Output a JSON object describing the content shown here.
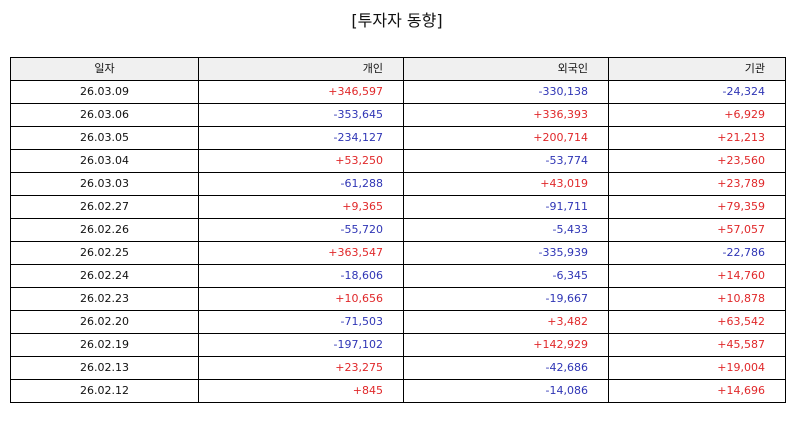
{
  "title": "[투자자 동향]",
  "columns": [
    "일자",
    "개인",
    "외국인",
    "기관"
  ],
  "colors": {
    "positive": "#e0282a",
    "negative": "#2f35b5"
  },
  "rows": [
    [
      "26.03.09",
      "+346,597",
      "-330,138",
      "-24,324"
    ],
    [
      "26.03.06",
      "-353,645",
      "+336,393",
      "+6,929"
    ],
    [
      "26.03.05",
      "-234,127",
      "+200,714",
      "+21,213"
    ],
    [
      "26.03.04",
      "+53,250",
      "-53,774",
      "+23,560"
    ],
    [
      "26.03.03",
      "-61,288",
      "+43,019",
      "+23,789"
    ],
    [
      "26.02.27",
      "+9,365",
      "-91,711",
      "+79,359"
    ],
    [
      "26.02.26",
      "-55,720",
      "-5,433",
      "+57,057"
    ],
    [
      "26.02.25",
      "+363,547",
      "-335,939",
      "-22,786"
    ],
    [
      "26.02.24",
      "-18,606",
      "-6,345",
      "+14,760"
    ],
    [
      "26.02.23",
      "+10,656",
      "-19,667",
      "+10,878"
    ],
    [
      "26.02.20",
      "-71,503",
      "+3,482",
      "+63,542"
    ],
    [
      "26.02.19",
      "-197,102",
      "+142,929",
      "+45,587"
    ],
    [
      "26.02.13",
      "+23,275",
      "-42,686",
      "+19,004"
    ],
    [
      "26.02.12",
      "+845",
      "-14,086",
      "+14,696"
    ]
  ]
}
